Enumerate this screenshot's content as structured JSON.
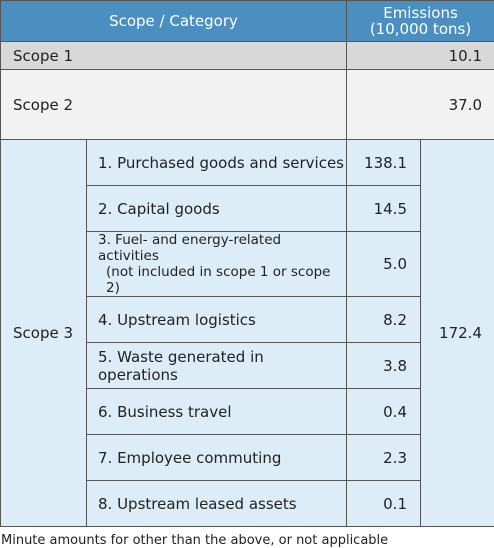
{
  "header": {
    "scope_category": "Scope / Category",
    "emissions_line1": "Emissions",
    "emissions_line2": "(10,000 tons)"
  },
  "scope1": {
    "label": "Scope 1",
    "value": "10.1"
  },
  "scope2": {
    "label": "Scope 2",
    "value": "37.0"
  },
  "scope3": {
    "label": "Scope 3",
    "total": "172.4",
    "categories": [
      {
        "name": "1. Purchased goods and services",
        "value": "138.1"
      },
      {
        "name": "2. Capital goods",
        "value": "14.5"
      },
      {
        "name_line1": "3. Fuel- and energy-related activities",
        "name_line2": "(not included in scope 1 or scope 2)",
        "value": "5.0"
      },
      {
        "name": "4. Upstream logistics",
        "value": "8.2"
      },
      {
        "name": "5. Waste generated in operations",
        "value": "3.8"
      },
      {
        "name": "6. Business travel",
        "value": "0.4"
      },
      {
        "name": "7. Employee commuting",
        "value": "2.3"
      },
      {
        "name": "8. Upstream leased assets",
        "value": "0.1"
      }
    ]
  },
  "footnote": "Minute amounts for other than the above, or not applicable"
}
